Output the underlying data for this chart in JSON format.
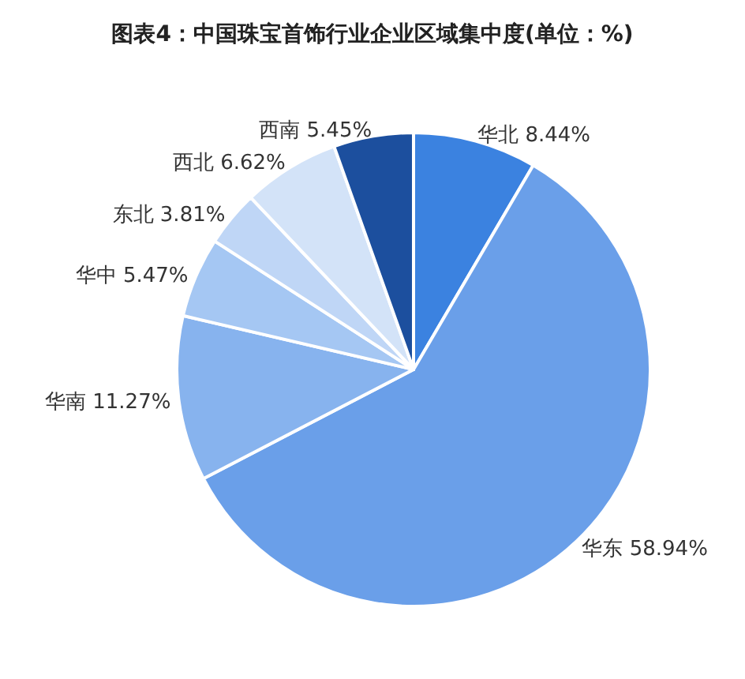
{
  "chart_data": {
    "type": "pie",
    "title": "图表4：中国珠宝首饰行业企业区域集中度(单位：%)",
    "categories": [
      "华北",
      "华东",
      "华南",
      "华中",
      "东北",
      "西北",
      "西南"
    ],
    "values": [
      8.44,
      58.94,
      11.27,
      5.47,
      3.81,
      6.62,
      5.45
    ],
    "value_labels": [
      "8.44%",
      "58.94%",
      "11.27%",
      "5.47%",
      "3.81%",
      "6.62%",
      "5.45%"
    ],
    "colors": [
      "#3b82e0",
      "#6a9fe9",
      "#87b3ee",
      "#a5c7f3",
      "#bfd6f6",
      "#d3e3f8",
      "#1c4f9e"
    ]
  }
}
